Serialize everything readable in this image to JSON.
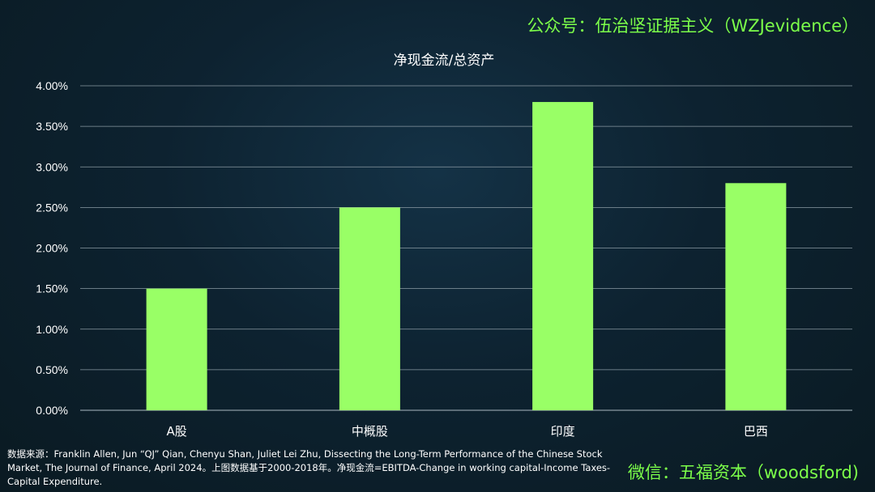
{
  "watermark_top": "公众号：伍治坚证据主义（WZJevidence）",
  "watermark_bottom": "微信：五福资本（woodsford)",
  "source_note": "数据来源：Franklin Allen, Jun “QJ” Qian, Chenyu Shan, Juliet Lei Zhu, Dissecting the Long-Term Performance of the Chinese Stock Market, The Journal of Finance, April 2024。上图数据基于2000-2018年。净现金流=EBITDA-Change in working capital-Income Taxes-Capital Expenditure.",
  "colors": {
    "bar": "#99ff66",
    "grid": "#8a9aa3",
    "watermark": "#7cff4a"
  },
  "chart_data": {
    "type": "bar",
    "title": "净现金流/总资产",
    "categories": [
      "A股",
      "中概股",
      "印度",
      "巴西"
    ],
    "values": [
      0.015,
      0.025,
      0.038,
      0.028
    ],
    "ylim": [
      0,
      0.04
    ],
    "yticks": [
      "0.00%",
      "0.50%",
      "1.00%",
      "1.50%",
      "2.00%",
      "2.50%",
      "3.00%",
      "3.50%",
      "4.00%"
    ],
    "grid": true,
    "legend": "none"
  }
}
